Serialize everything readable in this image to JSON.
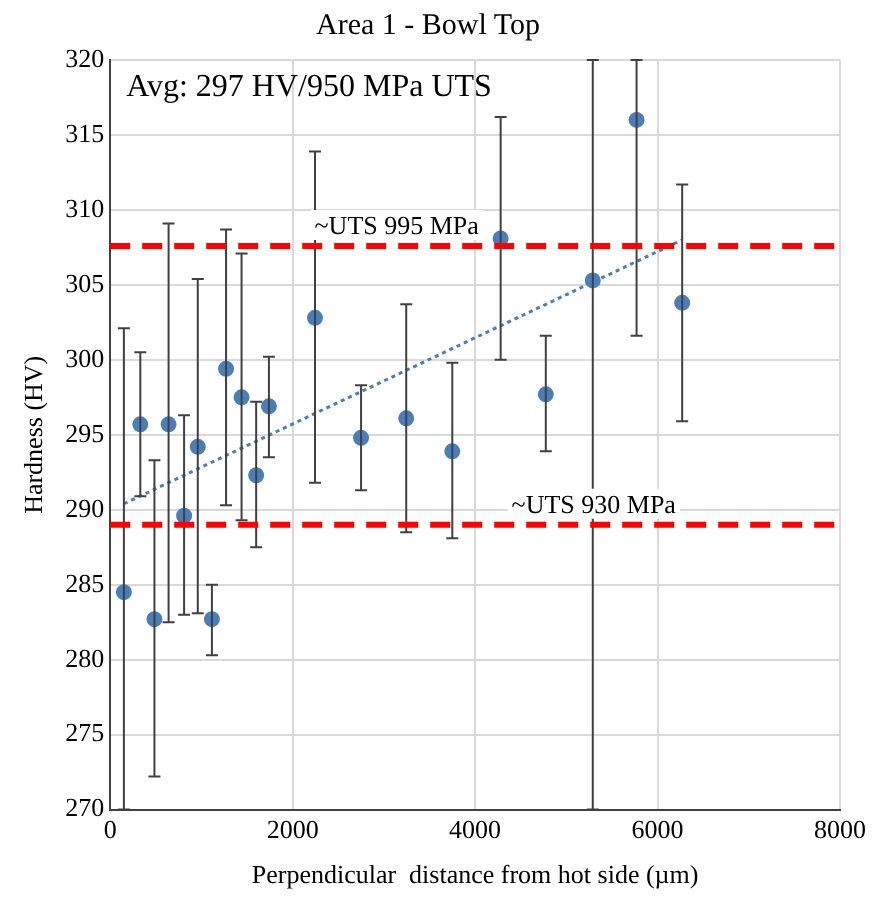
{
  "chart_data": {
    "type": "scatter",
    "title": "Area 1 - Bowl Top",
    "xlabel": "Perpendicular  distance from hot side (µm)",
    "ylabel": "Hardness (HV)",
    "xlim": [
      0,
      8000
    ],
    "xticks": [
      0,
      2000,
      4000,
      6000,
      8000
    ],
    "ylim": [
      270,
      320
    ],
    "yticks": [
      270,
      275,
      280,
      285,
      290,
      295,
      300,
      305,
      310,
      315,
      320
    ],
    "grid": true,
    "legend": false,
    "marker": "circle",
    "series": [
      {
        "color": "#4a7ebb",
        "x": [
          150,
          330,
          485,
          640,
          810,
          960,
          1115,
          1270,
          1440,
          1600,
          1740,
          2245,
          2750,
          3245,
          3750,
          4280,
          4775,
          5290,
          5770,
          6270
        ],
        "values": [
          284.5,
          295.7,
          282.7,
          295.7,
          289.6,
          294.2,
          282.7,
          299.4,
          297.5,
          292.3,
          296.9,
          302.8,
          294.8,
          296.1,
          293.9,
          308.1,
          297.7,
          305.3,
          316.0,
          303.8
        ],
        "errors": [
          [
            270,
            302.1
          ],
          [
            290.9,
            300.5
          ],
          [
            272.2,
            293.3
          ],
          [
            282.5,
            309.1
          ],
          [
            283.0,
            296.3
          ],
          [
            283.1,
            305.4
          ],
          [
            280.3,
            285.0
          ],
          [
            290.3,
            308.7
          ],
          [
            289.3,
            307.1
          ],
          [
            287.5,
            297.2
          ],
          [
            293.5,
            300.2
          ],
          [
            291.8,
            313.9
          ],
          [
            291.3,
            298.3
          ],
          [
            288.5,
            303.7
          ],
          [
            288.1,
            299.8
          ],
          [
            300.0,
            316.2
          ],
          [
            293.9,
            301.6
          ],
          [
            270,
            320
          ],
          [
            301.6,
            320
          ],
          [
            295.9,
            311.7
          ]
        ]
      },
      {
        "type": "line",
        "color": "#4a7ebb",
        "line_style": "dotted",
        "marker": "none",
        "x": [
          150,
          6270
        ],
        "values": [
          290.4,
          308.0
        ]
      }
    ],
    "ref_lines": [
      {
        "axis": "y",
        "value": 307.6,
        "label": "~UTS 995 MPa",
        "color": "#ff0000",
        "line_style": "dashed"
      },
      {
        "axis": "y",
        "value": 289.0,
        "label": "~UTS 930 MPa",
        "color": "#ff0000",
        "line_style": "dashed"
      }
    ],
    "annotations": [
      "Avg: 297 HV/950 MPa UTS"
    ]
  }
}
